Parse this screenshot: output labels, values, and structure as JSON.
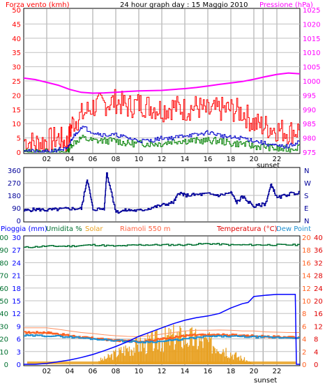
{
  "header": {
    "wind_label": "Forza vento (kmh)",
    "title": "24 hour graph day : 15 Maggio 2010",
    "pressure_label": "Pressione (hPa)"
  },
  "bottom_header": {
    "rain_label": "Pioggia (mm)",
    "humidity_label": "Umidita %",
    "solar_label": "Solar",
    "station_label": "Riamoli 550 m",
    "temp_label": "Temperatura (°C)",
    "dew_label": "Dew Point"
  },
  "sunset_label": "sunset",
  "colors": {
    "wind_gust": "#ff0000",
    "wind_avg": "#008000",
    "wind_max": "#0000cc",
    "pressure": "#ff00ff",
    "direction": "#000099",
    "rain": "#0000ff",
    "humidity": "#007030",
    "solar": "#e8a020",
    "temperature": "#ff6020",
    "dew_point": "#2090d0",
    "station": "#ff6040",
    "grid": "#c0c0c0"
  },
  "chart_data": [
    {
      "type": "line",
      "title": "24 hour graph day : 15 Maggio 2010",
      "x_ticks": [
        "02",
        "04",
        "06",
        "08",
        "10",
        "12",
        "14",
        "16",
        "18",
        "20",
        "22"
      ],
      "x_hours": [
        2,
        4,
        6,
        8,
        10,
        12,
        14,
        16,
        18,
        20,
        22
      ],
      "xlim": [
        0,
        24
      ],
      "left_axis": {
        "label": "Forza vento (kmh)",
        "ticks": [
          "0",
          "5",
          "10",
          "15",
          "20",
          "25",
          "30",
          "35",
          "40",
          "45",
          "50"
        ],
        "ylim": [
          0,
          50
        ]
      },
      "right_axis": {
        "label": "Pressione (hPa)",
        "ticks": [
          "975",
          "980",
          "985",
          "990",
          "995",
          "1000",
          "1005",
          "1010",
          "1015",
          "1020",
          "1025"
        ],
        "ylim": [
          975,
          1025
        ]
      },
      "sunset_hour": 20.8,
      "series": [
        {
          "name": "Forza vento",
          "axis": "left",
          "x": [
            0,
            1,
            2,
            3,
            3.8,
            4.2,
            5,
            6,
            7,
            8,
            9,
            10,
            11,
            12,
            13,
            14,
            15,
            16,
            17,
            18,
            19,
            20,
            21,
            22,
            23,
            24
          ],
          "values": [
            4,
            3,
            4,
            5,
            3,
            10,
            13,
            16,
            17,
            18,
            16,
            17,
            16,
            15,
            16,
            15,
            16,
            14,
            15,
            15,
            14,
            10,
            9,
            8,
            7,
            8
          ]
        },
        {
          "name": "",
          "axis": "left",
          "x": [
            0,
            1,
            2,
            3,
            3.8,
            4.2,
            5,
            6,
            7,
            8,
            9,
            10,
            11,
            12,
            13,
            14,
            15,
            16,
            17,
            18,
            19,
            20,
            21,
            22,
            23,
            24
          ],
          "values": [
            1,
            0,
            0,
            1,
            1,
            5,
            9,
            7,
            6,
            6,
            5,
            4,
            4,
            5,
            5,
            6,
            6,
            7,
            6,
            5,
            5,
            4,
            3,
            2,
            2,
            4
          ]
        },
        {
          "name": "",
          "axis": "left",
          "x": [
            0,
            1,
            2,
            3,
            3.8,
            4.2,
            5,
            6,
            7,
            8,
            9,
            10,
            11,
            12,
            13,
            14,
            15,
            16,
            17,
            18,
            19,
            20,
            21,
            22,
            23,
            24
          ],
          "values": [
            0,
            0,
            0,
            0,
            0,
            3,
            5,
            4,
            4,
            4,
            3,
            3,
            3,
            3,
            4,
            4,
            4,
            4,
            4,
            3,
            3,
            2,
            2,
            1,
            1,
            2
          ]
        },
        {
          "name": "Pressione",
          "axis": "right",
          "x": [
            0,
            1,
            2,
            3,
            4,
            5,
            6,
            7,
            8,
            9,
            10,
            11,
            12,
            13,
            14,
            15,
            16,
            17,
            18,
            19,
            20,
            21,
            22,
            23,
            24
          ],
          "values": [
            1001,
            1000.5,
            999.5,
            998.5,
            997,
            996,
            995.7,
            995.8,
            996,
            996.3,
            996.5,
            996.6,
            996.7,
            997,
            997.3,
            997.7,
            998.2,
            998.8,
            999.3,
            999.8,
            1000.6,
            1001.5,
            1002.3,
            1002.8,
            1002.5
          ]
        }
      ]
    },
    {
      "type": "line",
      "left_axis": {
        "ticks": [
          "0",
          "90",
          "180",
          "270",
          "360"
        ],
        "ylim": [
          0,
          360
        ]
      },
      "right_axis": {
        "ticks": [
          "N",
          "E",
          "S",
          "W",
          "N"
        ]
      },
      "xlim": [
        0,
        24
      ],
      "series": [
        {
          "name": "",
          "x": [
            0,
            1,
            2,
            3,
            4,
            5,
            5.5,
            6,
            7,
            7.2,
            8,
            9,
            10,
            11,
            12,
            13,
            13.5,
            14,
            15,
            16,
            17,
            18,
            18.5,
            19,
            20,
            21,
            21.5,
            22,
            23,
            24
          ],
          "values": [
            70,
            80,
            75,
            80,
            85,
            85,
            300,
            80,
            85,
            340,
            60,
            75,
            70,
            90,
            110,
            130,
            200,
            180,
            185,
            190,
            180,
            200,
            130,
            170,
            100,
            120,
            260,
            160,
            190,
            200
          ]
        }
      ]
    },
    {
      "type": "line",
      "left_axis": {
        "label": "Pioggia (mm)",
        "ticks": [
          "0",
          "3",
          "6",
          "9",
          "12",
          "15",
          "18",
          "21",
          "24",
          "27",
          "30"
        ],
        "ylim": [
          0,
          30
        ]
      },
      "left_axis_2": {
        "label": "Umidita %",
        "ticks": [
          "0",
          "10",
          "20",
          "30",
          "40",
          "50",
          "60",
          "70",
          "80",
          "90",
          "100"
        ],
        "ylim": [
          0,
          100
        ]
      },
      "right_axis": {
        "label": "Temperatura (°C)",
        "ticks": [
          "0",
          "4",
          "8",
          "12",
          "16",
          "20",
          "24",
          "28",
          "32",
          "36",
          "40"
        ],
        "ylim": [
          0,
          40
        ]
      },
      "right_axis_2": {
        "label": "Dew Point",
        "ticks": [
          "0",
          "2",
          "4",
          "6",
          "8",
          "10",
          "12",
          "14",
          "16",
          "18",
          "20"
        ],
        "ylim": [
          0,
          20
        ]
      },
      "xlim": [
        0,
        24
      ],
      "series": [
        {
          "name": "Pioggia",
          "x": [
            0,
            1,
            2,
            3,
            4,
            5,
            6,
            7,
            8,
            9,
            10,
            11,
            12,
            13,
            14,
            15,
            16,
            17,
            18,
            19,
            19.5,
            20,
            21,
            22,
            23,
            23.6,
            23.7,
            24
          ],
          "values": [
            0,
            0,
            0.2,
            0.6,
            1,
            1.6,
            2.3,
            3.2,
            4.2,
            5.3,
            6.6,
            7.6,
            8.6,
            9.6,
            10.4,
            11,
            11.4,
            12,
            13.3,
            14.3,
            14.6,
            16,
            16.3,
            16.5,
            16.5,
            16.5,
            0,
            0
          ]
        },
        {
          "name": "Umidita",
          "x": [
            0,
            2,
            4,
            6,
            8,
            10,
            12,
            14,
            16,
            18,
            20,
            22,
            24
          ],
          "values": [
            92,
            93,
            93,
            94,
            93,
            94,
            94,
            94,
            95,
            94,
            94,
            94,
            94
          ]
        },
        {
          "name": "Temperatura",
          "x": [
            0,
            1,
            2,
            3,
            4,
            5,
            6,
            7,
            8,
            9,
            10,
            11,
            12,
            13,
            14,
            15,
            16,
            17,
            18,
            19,
            20,
            21,
            22,
            23,
            24
          ],
          "values": [
            10,
            10,
            10,
            9.5,
            9,
            8.5,
            8.2,
            7.8,
            7.5,
            7.3,
            7.2,
            7.5,
            8,
            8.5,
            9,
            9.2,
            9.2,
            9.3,
            9.2,
            9,
            9,
            8.7,
            8.6,
            8.5,
            8.5
          ]
        },
        {
          "name": "Dew Point",
          "x": [
            0,
            2,
            4,
            6,
            8,
            10,
            12,
            14,
            16,
            18,
            20,
            22,
            24
          ],
          "values": [
            9,
            9,
            8.6,
            8,
            7.5,
            7,
            7.2,
            8,
            8.8,
            8.8,
            8.6,
            8.4,
            8.4
          ]
        },
        {
          "name": "Solar",
          "x": [
            0,
            5,
            6,
            7,
            8,
            9,
            10,
            11,
            12,
            13,
            14,
            15,
            16,
            17,
            18,
            19,
            20,
            24
          ],
          "values": [
            0,
            0,
            1,
            2,
            4,
            6,
            7,
            8,
            9,
            10,
            10,
            9,
            8,
            7,
            4,
            2,
            0,
            0
          ]
        }
      ]
    }
  ]
}
